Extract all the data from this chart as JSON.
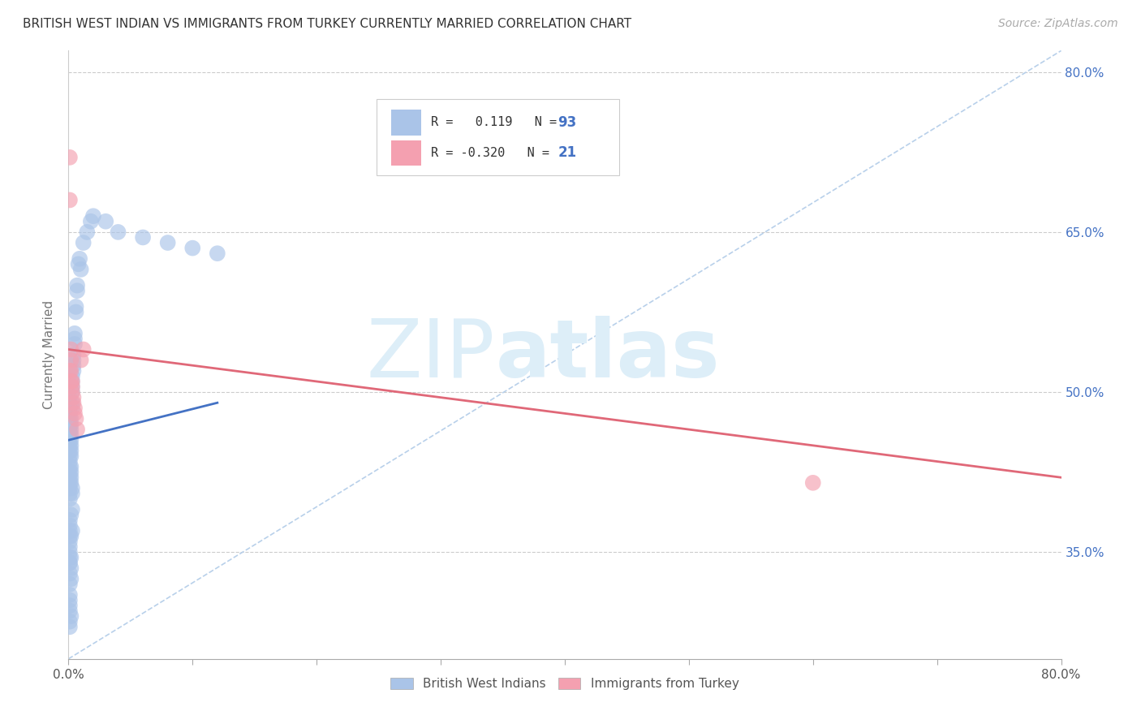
{
  "title": "BRITISH WEST INDIAN VS IMMIGRANTS FROM TURKEY CURRENTLY MARRIED CORRELATION CHART",
  "source": "Source: ZipAtlas.com",
  "ylabel": "Currently Married",
  "xlim": [
    0.0,
    0.8
  ],
  "ylim": [
    0.25,
    0.82
  ],
  "ytick_positions": [
    0.35,
    0.5,
    0.65,
    0.8
  ],
  "xtick_positions": [
    0.0,
    0.1,
    0.2,
    0.3,
    0.4,
    0.5,
    0.6,
    0.7,
    0.8
  ],
  "grid_color": "#cccccc",
  "background_color": "#ffffff",
  "blue_scatter_color": "#aac4e8",
  "pink_scatter_color": "#f4a0b0",
  "blue_line_color": "#4472c4",
  "pink_line_color": "#e06878",
  "diagonal_line_color": "#b8d0ea",
  "watermark_color": "#ddeef8",
  "legend_R1": "0.119",
  "legend_N1": "93",
  "legend_R2": "-0.320",
  "legend_N2": "21",
  "legend_label1": "British West Indians",
  "legend_label2": "Immigrants from Turkey",
  "blue_x": [
    0.001,
    0.001,
    0.001,
    0.001,
    0.001,
    0.001,
    0.001,
    0.001,
    0.001,
    0.001,
    0.001,
    0.001,
    0.001,
    0.001,
    0.001,
    0.001,
    0.001,
    0.001,
    0.001,
    0.001,
    0.002,
    0.002,
    0.002,
    0.002,
    0.002,
    0.002,
    0.002,
    0.002,
    0.003,
    0.003,
    0.003,
    0.003,
    0.003,
    0.003,
    0.004,
    0.004,
    0.004,
    0.004,
    0.005,
    0.005,
    0.005,
    0.006,
    0.006,
    0.007,
    0.007,
    0.008,
    0.009,
    0.01,
    0.012,
    0.015,
    0.018,
    0.02,
    0.03,
    0.04,
    0.06,
    0.08,
    0.1,
    0.12,
    0.001,
    0.002,
    0.003,
    0.001,
    0.002,
    0.003,
    0.001,
    0.002,
    0.001,
    0.002,
    0.001,
    0.001,
    0.002,
    0.001,
    0.001,
    0.002,
    0.001,
    0.001,
    0.001,
    0.001,
    0.001,
    0.001,
    0.001,
    0.001,
    0.001,
    0.001,
    0.002,
    0.002,
    0.002,
    0.002,
    0.003,
    0.003
  ],
  "blue_y": [
    0.45,
    0.455,
    0.46,
    0.465,
    0.47,
    0.475,
    0.48,
    0.485,
    0.49,
    0.495,
    0.435,
    0.44,
    0.445,
    0.425,
    0.43,
    0.42,
    0.415,
    0.41,
    0.405,
    0.4,
    0.46,
    0.465,
    0.47,
    0.475,
    0.455,
    0.45,
    0.445,
    0.44,
    0.5,
    0.505,
    0.51,
    0.515,
    0.49,
    0.485,
    0.53,
    0.535,
    0.52,
    0.525,
    0.555,
    0.55,
    0.545,
    0.58,
    0.575,
    0.6,
    0.595,
    0.62,
    0.625,
    0.615,
    0.64,
    0.65,
    0.66,
    0.665,
    0.66,
    0.65,
    0.645,
    0.64,
    0.635,
    0.63,
    0.38,
    0.385,
    0.39,
    0.36,
    0.365,
    0.37,
    0.34,
    0.345,
    0.33,
    0.335,
    0.31,
    0.32,
    0.325,
    0.305,
    0.3,
    0.29,
    0.295,
    0.285,
    0.28,
    0.375,
    0.37,
    0.365,
    0.355,
    0.35,
    0.345,
    0.34,
    0.43,
    0.425,
    0.42,
    0.415,
    0.41,
    0.405
  ],
  "pink_x": [
    0.001,
    0.001,
    0.001,
    0.002,
    0.002,
    0.002,
    0.002,
    0.003,
    0.003,
    0.003,
    0.004,
    0.004,
    0.005,
    0.005,
    0.006,
    0.007,
    0.01,
    0.012,
    0.6
  ],
  "pink_y": [
    0.72,
    0.68,
    0.52,
    0.54,
    0.53,
    0.52,
    0.51,
    0.51,
    0.505,
    0.5,
    0.495,
    0.49,
    0.485,
    0.48,
    0.475,
    0.465,
    0.53,
    0.54,
    0.415
  ],
  "blue_line_x": [
    0.0,
    0.12
  ],
  "blue_line_y": [
    0.455,
    0.49
  ],
  "pink_line_x": [
    0.0,
    0.8
  ],
  "pink_line_y": [
    0.54,
    0.42
  ],
  "diagonal_line_x": [
    0.0,
    0.8
  ],
  "diagonal_line_y": [
    0.25,
    0.82
  ]
}
